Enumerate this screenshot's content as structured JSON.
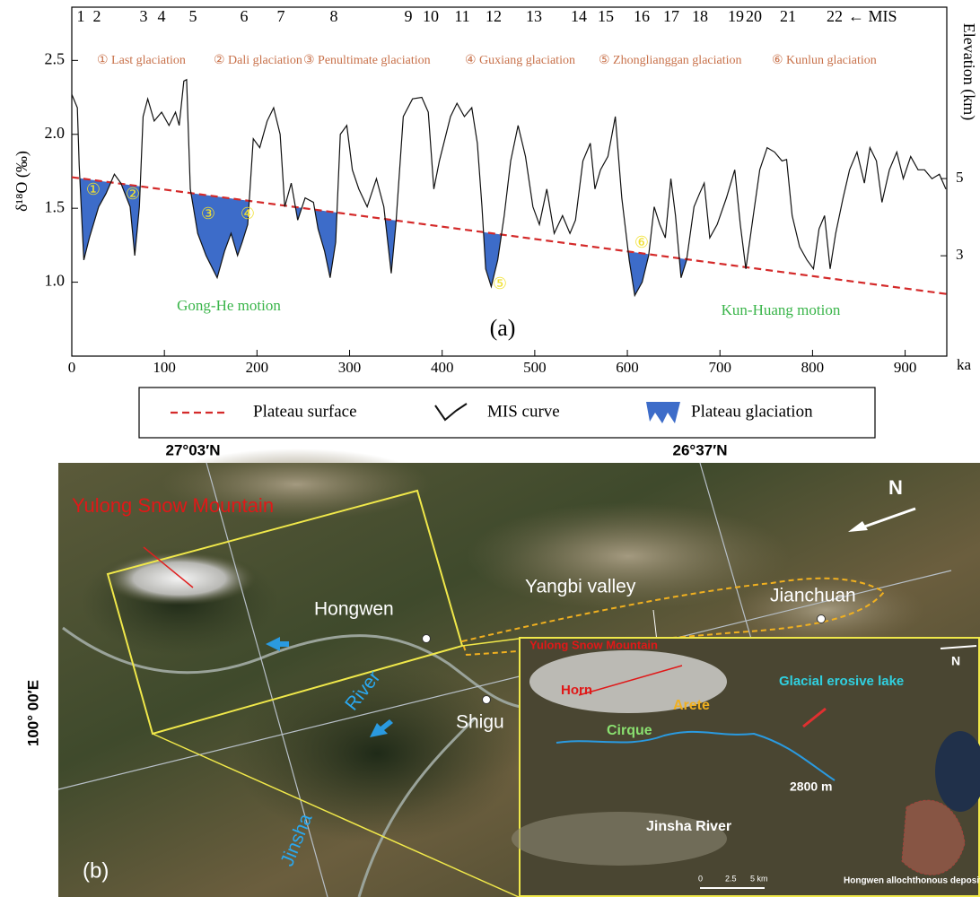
{
  "chart_data": {
    "type": "line",
    "panel_label": "(a)",
    "xlabel": "ka",
    "ylabel": "δ¹⁸O (‰)",
    "y2label": "Elevation (km)",
    "mis_numbers": [
      "1",
      "2",
      "3",
      "4",
      "5",
      "6",
      "7",
      "8",
      "9",
      "10",
      "11",
      "12",
      "13",
      "14",
      "15",
      "16",
      "17",
      "18",
      "19",
      "20",
      "21",
      "22"
    ],
    "mis_label": "← MIS",
    "glaciations": [
      "① Last glaciation",
      "② Dali glaciation",
      "③ Penultimate glaciation",
      "④ Guxiang glaciation",
      "⑤ Zhonglianggan glaciation",
      "⑥ Kunlun glaciation"
    ],
    "glaciation_markers": [
      "①",
      "②",
      "③",
      "④",
      "⑤",
      "⑥"
    ],
    "motions": [
      "Gong-He motion",
      "Kun-Huang motion"
    ],
    "xlim": [
      0,
      945
    ],
    "xticks": [
      0,
      100,
      200,
      300,
      400,
      500,
      600,
      700,
      800,
      900
    ],
    "ylim": [
      0.5,
      2.86
    ],
    "yticks": [
      {
        "value": 1,
        "label": "1.0"
      },
      1.5,
      {
        "value": 2,
        "label": "2.0"
      },
      2.5
    ],
    "y2lim": [
      0.4,
      9.44
    ],
    "y2ticks": [
      3,
      5
    ],
    "series": [
      {
        "name": "Plateau surface",
        "color": "#d42a2a",
        "dashed": true,
        "x": [
          0,
          945
        ],
        "values": [
          1.71,
          0.92
        ]
      },
      {
        "name": "MIS curve",
        "color": "#111111",
        "dashed": false,
        "x": [
          0,
          6,
          8,
          13,
          19,
          29,
          37,
          46,
          53,
          63,
          68,
          73,
          77,
          82,
          89,
          97,
          105,
          112,
          116,
          121,
          124,
          128,
          136,
          145,
          157,
          165,
          172,
          179,
          184,
          190,
          196,
          203,
          211,
          218,
          225,
          230,
          237,
          244,
          252,
          261,
          266,
          273,
          279,
          285,
          290,
          297,
          303,
          310,
          319,
          329,
          337,
          345,
          350,
          358,
          368,
          378,
          385,
          391,
          397,
          403,
          409,
          416,
          424,
          432,
          438,
          443,
          447,
          453,
          460,
          467,
          474,
          482,
          490,
          498,
          505,
          513,
          521,
          530,
          538,
          544,
          552,
          560,
          565,
          571,
          579,
          587,
          594,
          602,
          608,
          616,
          623,
          629,
          635,
          641,
          647,
          652,
          658,
          664,
          672,
          678,
          683,
          689,
          697,
          707,
          716,
          722,
          728,
          736,
          743,
          751,
          759,
          767,
          772,
          778,
          786,
          794,
          801,
          807,
          813,
          819,
          825,
          833,
          840,
          848,
          856,
          862,
          869,
          875,
          883,
          891,
          898,
          906,
          914,
          921,
          929,
          937,
          944
        ],
        "values": [
          2.27,
          2.18,
          1.79,
          1.15,
          1.3,
          1.51,
          1.6,
          1.73,
          1.67,
          1.51,
          1.18,
          1.51,
          2.12,
          2.24,
          2.09,
          2.15,
          2.06,
          2.15,
          2.06,
          2.36,
          2.37,
          1.63,
          1.33,
          1.18,
          1.03,
          1.21,
          1.33,
          1.18,
          1.27,
          1.39,
          1.97,
          1.91,
          2.09,
          2.18,
          2.0,
          1.51,
          1.67,
          1.42,
          1.57,
          1.54,
          1.36,
          1.21,
          1.03,
          1.27,
          2.0,
          2.06,
          1.76,
          1.63,
          1.51,
          1.7,
          1.51,
          1.06,
          1.39,
          2.12,
          2.24,
          2.25,
          2.15,
          1.63,
          1.82,
          1.97,
          2.12,
          2.21,
          2.12,
          2.18,
          1.94,
          1.51,
          1.09,
          0.97,
          1.15,
          1.45,
          1.82,
          2.06,
          1.85,
          1.51,
          1.39,
          1.63,
          1.33,
          1.45,
          1.33,
          1.42,
          1.82,
          1.94,
          1.63,
          1.76,
          1.85,
          2.12,
          1.57,
          1.15,
          0.91,
          1.0,
          1.18,
          1.51,
          1.39,
          1.3,
          1.7,
          1.45,
          1.03,
          1.15,
          1.51,
          1.6,
          1.67,
          1.3,
          1.39,
          1.57,
          1.76,
          1.39,
          1.09,
          1.45,
          1.76,
          1.91,
          1.88,
          1.82,
          1.83,
          1.45,
          1.24,
          1.15,
          1.09,
          1.36,
          1.45,
          1.09,
          1.33,
          1.57,
          1.76,
          1.88,
          1.67,
          1.91,
          1.82,
          1.54,
          1.76,
          1.88,
          1.7,
          1.85,
          1.76,
          1.76,
          1.7,
          1.73,
          1.63
        ]
      }
    ],
    "fill_between": {
      "name": "Plateau glaciation",
      "color": "#3d6cc9"
    }
  },
  "map": {
    "panel_label": "(b)",
    "lat_labels": [
      "27°03′N",
      "26°37′N"
    ],
    "lon_label": "100° 00′E",
    "north": "N",
    "places": [
      "Yulong Snow Mountain",
      "Hongwen",
      "Yangbi valley",
      "Jianchuan",
      "Shigu",
      "River",
      "Jinsha"
    ],
    "inset": {
      "title": "Yulong Snow Mountain",
      "labels": [
        "Horn",
        "Arete",
        "Cirque",
        "Glacial erosive lake",
        "2800 m",
        "Jinsha River",
        "Hongwen allochthonous deposit"
      ],
      "north": "N",
      "scale": [
        "0",
        "2.5",
        "5 km"
      ]
    }
  }
}
